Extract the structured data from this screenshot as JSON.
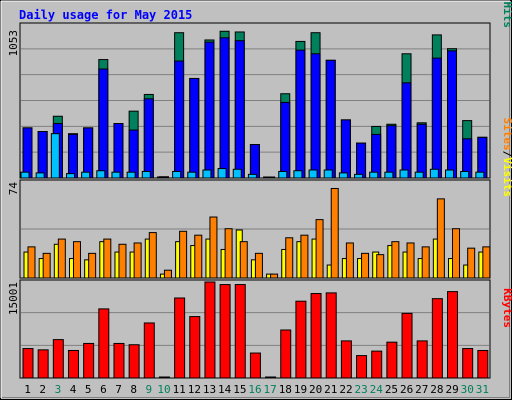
{
  "title": "Daily usage for May 2015",
  "colors": {
    "background": "#c0c0c0",
    "plot_bg": "#c0c0c0",
    "grid": "#808080",
    "title": "#0000ff",
    "hits": "#00805c",
    "files": "#0000ff",
    "pages": "#00c0ff",
    "visits": "#ffff00",
    "sites": "#ff8000",
    "kbytes": "#ff0000",
    "day_weekday": "#000000",
    "day_weekend": "#00805c"
  },
  "legends": {
    "top": [
      {
        "text": "Pages",
        "color": "#00c0ff"
      },
      {
        "text": "/",
        "color": "#000000"
      },
      {
        "text": "Files",
        "color": "#0000ff"
      },
      {
        "text": "/",
        "color": "#000000"
      },
      {
        "text": "Hits",
        "color": "#00805c"
      }
    ],
    "middle": [
      {
        "text": "Sites",
        "color": "#ff8000"
      },
      {
        "text": "/",
        "color": "#000000"
      },
      {
        "text": "Visits",
        "color": "#ffff00"
      }
    ],
    "bottom": [
      {
        "text": "KBytes",
        "color": "#ff0000"
      }
    ]
  },
  "chart_data": [
    {
      "type": "bar",
      "panel": "top",
      "ymax_label": "1053",
      "ylim": [
        0,
        1053
      ],
      "categories": [
        "1",
        "2",
        "3",
        "4",
        "5",
        "6",
        "7",
        "8",
        "9",
        "10",
        "11",
        "12",
        "13",
        "14",
        "15",
        "16",
        "17",
        "18",
        "19",
        "20",
        "21",
        "22",
        "23",
        "24",
        "25",
        "26",
        "27",
        "28",
        "29",
        "30",
        "31"
      ],
      "series": [
        {
          "name": "Hits",
          "values": [
            345,
            320,
            425,
            305,
            345,
            815,
            375,
            460,
            575,
            8,
            1000,
            685,
            950,
            1010,
            1005,
            230,
            5,
            580,
            940,
            1000,
            810,
            400,
            240,
            355,
            370,
            855,
            380,
            985,
            890,
            395,
            280
          ]
        },
        {
          "name": "Files",
          "values": [
            345,
            320,
            375,
            300,
            345,
            750,
            375,
            330,
            545,
            8,
            805,
            685,
            935,
            965,
            945,
            230,
            5,
            520,
            880,
            855,
            810,
            400,
            240,
            300,
            360,
            655,
            370,
            825,
            875,
            270,
            280
          ]
        },
        {
          "name": "Pages",
          "values": [
            40,
            35,
            305,
            30,
            40,
            50,
            40,
            40,
            45,
            5,
            45,
            40,
            55,
            65,
            60,
            25,
            5,
            45,
            50,
            55,
            55,
            35,
            25,
            40,
            40,
            55,
            40,
            60,
            55,
            45,
            40
          ]
        }
      ]
    },
    {
      "type": "bar",
      "panel": "middle",
      "ymax_label": "74",
      "ylim": [
        0,
        74
      ],
      "categories": [
        "1",
        "2",
        "3",
        "4",
        "5",
        "6",
        "7",
        "8",
        "9",
        "10",
        "11",
        "12",
        "13",
        "14",
        "15",
        "16",
        "17",
        "18",
        "19",
        "20",
        "21",
        "22",
        "23",
        "24",
        "25",
        "26",
        "27",
        "28",
        "29",
        "30",
        "31"
      ],
      "series": [
        {
          "name": "Visits",
          "values": [
            20,
            15,
            26,
            15,
            14,
            28,
            20,
            20,
            30,
            3,
            28,
            25,
            30,
            22,
            37,
            14,
            3,
            22,
            28,
            30,
            10,
            15,
            15,
            20,
            25,
            20,
            15,
            30,
            15,
            10,
            20
          ]
        },
        {
          "name": "Sites",
          "values": [
            24,
            19,
            30,
            28,
            19,
            30,
            26,
            27,
            35,
            6,
            36,
            33,
            47,
            38,
            28,
            19,
            3,
            31,
            33,
            45,
            69,
            27,
            19,
            18,
            28,
            27,
            24,
            61,
            38,
            23,
            24
          ]
        }
      ]
    },
    {
      "type": "bar",
      "panel": "bottom",
      "ymax_label": "15001",
      "ylim": [
        0,
        15001
      ],
      "categories": [
        "1",
        "2",
        "3",
        "4",
        "5",
        "6",
        "7",
        "8",
        "9",
        "10",
        "11",
        "12",
        "13",
        "14",
        "15",
        "16",
        "17",
        "18",
        "19",
        "20",
        "21",
        "22",
        "23",
        "24",
        "25",
        "26",
        "27",
        "28",
        "29",
        "30",
        "31"
      ],
      "series": [
        {
          "name": "KBytes",
          "values": [
            4600,
            4400,
            6000,
            4300,
            5400,
            10800,
            5400,
            5200,
            8600,
            50,
            12500,
            9600,
            15001,
            14600,
            14600,
            3900,
            50,
            7500,
            12000,
            13200,
            13300,
            5800,
            3500,
            4200,
            5600,
            10100,
            5800,
            12400,
            13500,
            4600,
            4300
          ]
        }
      ]
    }
  ],
  "x_labels": [
    {
      "text": "1",
      "weekend": false
    },
    {
      "text": "2",
      "weekend": false
    },
    {
      "text": "3",
      "weekend": true
    },
    {
      "text": "4",
      "weekend": false
    },
    {
      "text": "5",
      "weekend": false
    },
    {
      "text": "6",
      "weekend": false
    },
    {
      "text": "7",
      "weekend": false
    },
    {
      "text": "8",
      "weekend": false
    },
    {
      "text": "9",
      "weekend": true
    },
    {
      "text": "10",
      "weekend": true
    },
    {
      "text": "11",
      "weekend": false
    },
    {
      "text": "12",
      "weekend": false
    },
    {
      "text": "13",
      "weekend": false
    },
    {
      "text": "14",
      "weekend": false
    },
    {
      "text": "15",
      "weekend": false
    },
    {
      "text": "16",
      "weekend": true
    },
    {
      "text": "17",
      "weekend": true
    },
    {
      "text": "18",
      "weekend": false
    },
    {
      "text": "19",
      "weekend": false
    },
    {
      "text": "20",
      "weekend": false
    },
    {
      "text": "21",
      "weekend": false
    },
    {
      "text": "22",
      "weekend": false
    },
    {
      "text": "23",
      "weekend": true
    },
    {
      "text": "24",
      "weekend": true
    },
    {
      "text": "25",
      "weekend": false
    },
    {
      "text": "26",
      "weekend": false
    },
    {
      "text": "27",
      "weekend": false
    },
    {
      "text": "28",
      "weekend": false
    },
    {
      "text": "29",
      "weekend": false
    },
    {
      "text": "30",
      "weekend": true
    },
    {
      "text": "31",
      "weekend": true
    }
  ]
}
